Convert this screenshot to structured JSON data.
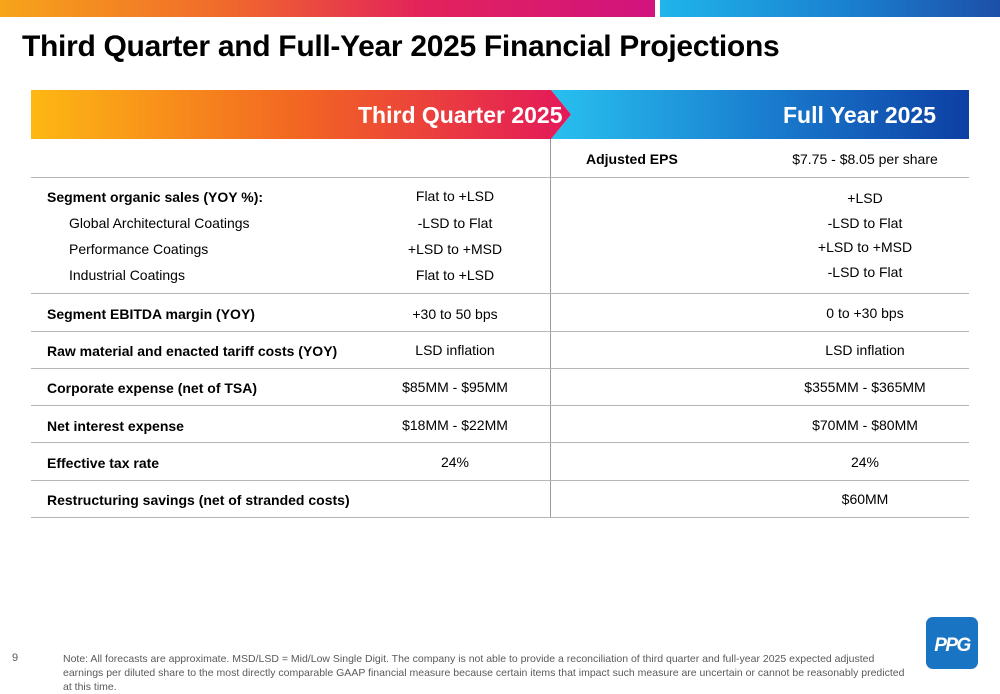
{
  "slide": {
    "title": "Third Quarter and Full-Year 2025 Financial Projections",
    "page_number": "9"
  },
  "header": {
    "q3_label": "Third Quarter 2025",
    "fy_label": "Full Year 2025"
  },
  "eps": {
    "label": "Adjusted EPS",
    "full_year": "$7.75 - $8.05 per share"
  },
  "segment_sales": {
    "label": "Segment organic sales (YOY %):",
    "q3": "Flat to +LSD",
    "full_year": "+LSD",
    "subrows": [
      {
        "label": "Global Architectural Coatings",
        "q3": "-LSD to Flat",
        "full_year": "-LSD to Flat"
      },
      {
        "label": "Performance Coatings",
        "q3": "+LSD to +MSD",
        "full_year": "+LSD to +MSD"
      },
      {
        "label": "Industrial Coatings",
        "q3": "Flat to +LSD",
        "full_year": "-LSD to Flat"
      }
    ]
  },
  "rows": [
    {
      "label": "Segment EBITDA margin (YOY)",
      "q3": "+30 to 50 bps",
      "full_year": "0 to +30 bps"
    },
    {
      "label": "Raw material and enacted tariff costs (YOY)",
      "q3": "LSD inflation",
      "full_year": "LSD inflation"
    },
    {
      "label": "Corporate expense (net of TSA)",
      "q3": "$85MM - $95MM",
      "full_year": "$355MM - $365MM"
    },
    {
      "label": "Net interest expense",
      "q3": "$18MM - $22MM",
      "full_year": "$70MM - $80MM"
    },
    {
      "label": "Effective tax rate",
      "q3": "24%",
      "full_year": "24%"
    },
    {
      "label": "Restructuring savings (net of stranded costs)",
      "q3": "",
      "full_year": "$60MM"
    }
  ],
  "footer": {
    "note": "Note: All forecasts are approximate. MSD/LSD =  Mid/Low Single Digit. The company is not able to provide a reconciliation of third quarter and full-year 2025 expected adjusted earnings per diluted share to the most directly comparable GAAP financial measure because certain items that impact such measure are uncertain or cannot be reasonably predicted at this time."
  },
  "logo": {
    "text": "PPG",
    "color": "#1a74c4",
    "icon": "ppg-logo"
  },
  "colors": {
    "q3_gradient": [
      "#fdb813",
      "#f26522",
      "#e3185a"
    ],
    "fy_gradient": [
      "#28c0ef",
      "#1a7fd0",
      "#0d3fa3"
    ]
  }
}
